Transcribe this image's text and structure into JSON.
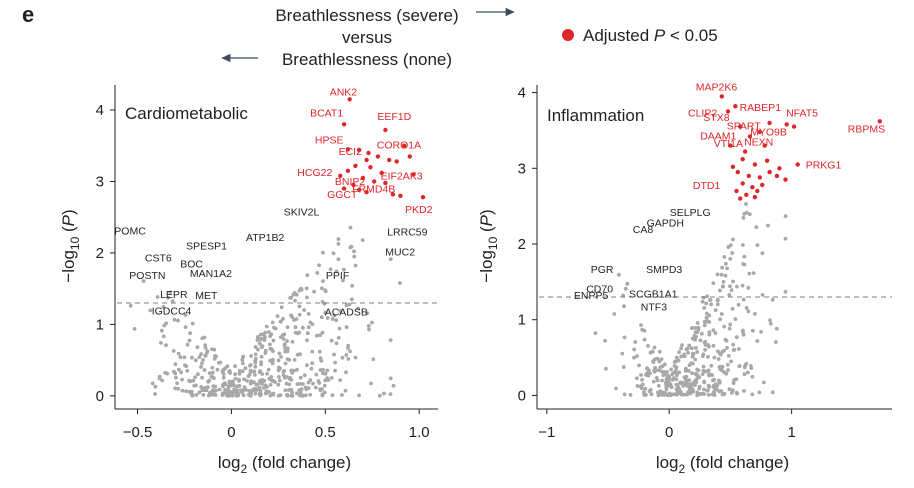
{
  "figure": {
    "panel_letter": "e",
    "comparison_line1": "Breathlessness (severe)",
    "comparison_line2": "versus",
    "comparison_line3": "Breathlessness (none)",
    "legend_label": "Adjusted P < 0.05",
    "legend_label_prefix": "Adjusted ",
    "legend_label_italic": "P",
    "legend_label_suffix": " < 0.05",
    "colors": {
      "significant": "#e0262a",
      "nonsignificant": "#a8a8a8",
      "axis": "#231f20",
      "threshold": "#7f7f7f",
      "arrow": "#3c4c5c"
    }
  },
  "chart_data": [
    {
      "type": "scatter",
      "title": "Cardiometabolic",
      "xlabel": "log2 (fold change)",
      "ylabel": "−log10 (P)",
      "xlim": [
        -0.62,
        1.1
      ],
      "ylim": [
        -0.1,
        4.35
      ],
      "xticks": [
        -0.5,
        0,
        0.5,
        1.0
      ],
      "xtick_labels": [
        "−0.5",
        "0",
        "0.5",
        "1.0"
      ],
      "yticks": [
        0,
        1,
        2,
        3,
        4
      ],
      "ytick_labels": [
        "0",
        "1",
        "2",
        "3",
        "4"
      ],
      "threshold": 1.3,
      "significant_points": [
        [
          0.63,
          4.15
        ],
        [
          0.6,
          3.8
        ],
        [
          0.82,
          3.72
        ],
        [
          0.92,
          3.5
        ],
        [
          0.62,
          3.45
        ],
        [
          0.68,
          3.44
        ],
        [
          0.72,
          3.3
        ],
        [
          0.78,
          3.35
        ],
        [
          0.84,
          3.3
        ],
        [
          0.88,
          3.28
        ],
        [
          0.66,
          3.22
        ],
        [
          0.74,
          3.2
        ],
        [
          0.58,
          3.08
        ],
        [
          0.7,
          3.05
        ],
        [
          0.76,
          3.0
        ],
        [
          0.82,
          2.98
        ],
        [
          0.65,
          2.95
        ],
        [
          0.68,
          2.88
        ],
        [
          0.72,
          2.85
        ],
        [
          0.86,
          2.82
        ],
        [
          0.9,
          2.8
        ],
        [
          0.97,
          3.1
        ],
        [
          1.02,
          2.78
        ],
        [
          0.95,
          3.35
        ],
        [
          0.62,
          3.15
        ],
        [
          0.8,
          3.12
        ],
        [
          0.6,
          2.9
        ],
        [
          0.73,
          3.4
        ]
      ],
      "labels": [
        {
          "text": "ANK2",
          "x": 0.63,
          "y": 4.15,
          "sig": true
        },
        {
          "text": "BCAT1",
          "x": 0.6,
          "y": 3.8,
          "sig": true
        },
        {
          "text": "EEF1D",
          "x": 0.82,
          "y": 3.72,
          "sig": true
        },
        {
          "text": "HPSE",
          "x": 0.62,
          "y": 3.45,
          "sig": true
        },
        {
          "text": "ECI2",
          "x": 0.72,
          "y": 3.3,
          "sig": true
        },
        {
          "text": "CORO1A",
          "x": 0.95,
          "y": 3.35,
          "sig": true
        },
        {
          "text": "HCG22",
          "x": 0.58,
          "y": 3.08,
          "sig": true
        },
        {
          "text": "EIF2AK3",
          "x": 0.97,
          "y": 3.1,
          "sig": true
        },
        {
          "text": "BNIP2",
          "x": 0.7,
          "y": 3.05,
          "sig": true
        },
        {
          "text": "FRMD4B",
          "x": 0.76,
          "y": 3.0,
          "sig": true
        },
        {
          "text": "GGCT",
          "x": 0.68,
          "y": 2.88,
          "sig": true
        },
        {
          "text": "PKD2",
          "x": 1.02,
          "y": 2.78,
          "sig": true
        },
        {
          "text": "SKIV2L",
          "x": 0.47,
          "y": 2.55,
          "sig": false
        },
        {
          "text": "ATP1B2",
          "x": 0.28,
          "y": 2.25,
          "sig": false
        },
        {
          "text": "LRRC59",
          "x": 0.84,
          "y": 2.3,
          "sig": false
        },
        {
          "text": "MUC2",
          "x": 0.83,
          "y": 2.05,
          "sig": false
        },
        {
          "text": "POMC",
          "x": -0.56,
          "y": 2.12,
          "sig": false
        },
        {
          "text": "SPESP1",
          "x": -0.22,
          "y": 2.05,
          "sig": false
        },
        {
          "text": "CST6",
          "x": -0.45,
          "y": 1.98,
          "sig": false
        },
        {
          "text": "BOC",
          "x": -0.23,
          "y": 1.88,
          "sig": false
        },
        {
          "text": "POSTN",
          "x": -0.32,
          "y": 1.72,
          "sig": false
        },
        {
          "text": "MAN1A2",
          "x": -0.2,
          "y": 1.66,
          "sig": false
        },
        {
          "text": "LEPR",
          "x": -0.22,
          "y": 1.45,
          "sig": false
        },
        {
          "text": "MET",
          "x": -0.15,
          "y": 1.45,
          "sig": false
        },
        {
          "text": "PPIF",
          "x": 0.62,
          "y": 1.72,
          "sig": false
        },
        {
          "text": "IGDCC4",
          "x": -0.27,
          "y": 1.18,
          "sig": false
        },
        {
          "text": "ACADSB",
          "x": 0.55,
          "y": 1.18,
          "sig": false
        }
      ]
    },
    {
      "type": "scatter",
      "title": "Inflammation",
      "xlabel": "log2 (fold change)",
      "ylabel": "−log10 (P)",
      "xlim": [
        -1.08,
        1.82
      ],
      "ylim": [
        -0.1,
        4.1
      ],
      "xticks": [
        -1,
        0,
        1
      ],
      "xtick_labels": [
        "−1",
        "0",
        "1"
      ],
      "yticks": [
        0,
        1,
        2,
        3,
        4
      ],
      "ytick_labels": [
        "0",
        "1",
        "2",
        "3",
        "4"
      ],
      "threshold": 1.3,
      "significant_points": [
        [
          0.43,
          3.95
        ],
        [
          0.48,
          3.75
        ],
        [
          0.54,
          3.82
        ],
        [
          0.82,
          3.6
        ],
        [
          0.96,
          3.58
        ],
        [
          1.02,
          3.55
        ],
        [
          1.72,
          3.62
        ],
        [
          0.58,
          3.55
        ],
        [
          0.66,
          3.42
        ],
        [
          0.74,
          3.48
        ],
        [
          0.5,
          3.3
        ],
        [
          0.62,
          3.22
        ],
        [
          0.7,
          3.05
        ],
        [
          0.78,
          3.3
        ],
        [
          0.56,
          2.95
        ],
        [
          0.65,
          2.9
        ],
        [
          0.74,
          2.88
        ],
        [
          0.82,
          2.95
        ],
        [
          0.88,
          2.9
        ],
        [
          0.52,
          3.02
        ],
        [
          0.6,
          2.8
        ],
        [
          0.68,
          2.75
        ],
        [
          0.76,
          2.78
        ],
        [
          0.55,
          2.7
        ],
        [
          0.63,
          2.65
        ],
        [
          0.72,
          2.7
        ],
        [
          1.05,
          3.05
        ],
        [
          0.8,
          3.1
        ],
        [
          0.9,
          3.0
        ],
        [
          0.95,
          2.85
        ],
        [
          0.58,
          2.6
        ],
        [
          0.7,
          2.62
        ],
        [
          0.6,
          3.12
        ]
      ],
      "labels": [
        {
          "text": "MAP2K6",
          "x": 0.43,
          "y": 3.95,
          "sig": true
        },
        {
          "text": "RABEP1",
          "x": 0.82,
          "y": 3.6,
          "sig": true
        },
        {
          "text": "CLIP2",
          "x": 0.48,
          "y": 3.75,
          "sig": true
        },
        {
          "text": "SPART",
          "x": 0.96,
          "y": 3.58,
          "sig": true
        },
        {
          "text": "NFAT5",
          "x": 1.02,
          "y": 3.55,
          "sig": true
        },
        {
          "text": "RBPMS",
          "x": 1.72,
          "y": 3.62,
          "sig": true
        },
        {
          "text": "STX8",
          "x": 0.54,
          "y": 3.82,
          "sig": true
        },
        {
          "text": "NEXN",
          "x": 1.02,
          "y": 3.55,
          "sig": true
        },
        {
          "text": "DAAM1",
          "x": 0.58,
          "y": 3.55,
          "sig": true
        },
        {
          "text": "MYO9B",
          "x": 1.02,
          "y": 3.55,
          "sig": true
        },
        {
          "text": "VTI1A",
          "x": 0.74,
          "y": 3.48,
          "sig": true
        },
        {
          "text": "DTD1",
          "x": 0.52,
          "y": 3.02,
          "sig": true
        },
        {
          "text": "PRKG1",
          "x": 1.05,
          "y": 3.05,
          "sig": true
        },
        {
          "text": "SELPLG",
          "x": 0.25,
          "y": 2.42,
          "sig": false
        },
        {
          "text": "GAPDH",
          "x": 0.06,
          "y": 2.18,
          "sig": false
        },
        {
          "text": "CA8",
          "x": -0.02,
          "y": 2.12,
          "sig": false
        },
        {
          "text": "PGR",
          "x": -0.38,
          "y": 1.72,
          "sig": false
        },
        {
          "text": "SMPD3",
          "x": -0.14,
          "y": 1.72,
          "sig": false
        },
        {
          "text": "CD70",
          "x": -0.4,
          "y": 1.52,
          "sig": false
        },
        {
          "text": "SCGB1A1",
          "x": -0.1,
          "y": 1.48,
          "sig": false
        },
        {
          "text": "ENPP5",
          "x": -0.55,
          "y": 1.35,
          "sig": false
        },
        {
          "text": "NTF3",
          "x": -0.15,
          "y": 1.28,
          "sig": false
        }
      ]
    }
  ]
}
